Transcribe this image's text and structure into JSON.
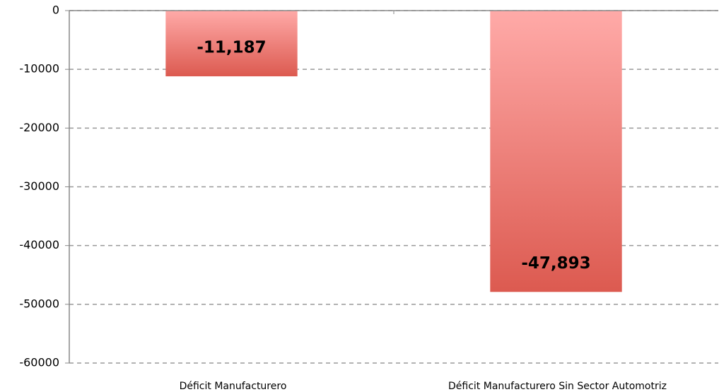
{
  "chart_data": {
    "type": "bar",
    "categories": [
      "Déficit Manufacturero",
      "Déficit Manufacturero Sin Sector Automotriz"
    ],
    "values": [
      -11187,
      -47893
    ],
    "value_labels": [
      "-11,187",
      "-47,893"
    ],
    "color": "#e0574f",
    "ylim": [
      -60000,
      0
    ],
    "yticks": [
      0,
      -10000,
      -20000,
      -30000,
      -40000,
      -50000,
      -60000
    ],
    "grid": true
  }
}
